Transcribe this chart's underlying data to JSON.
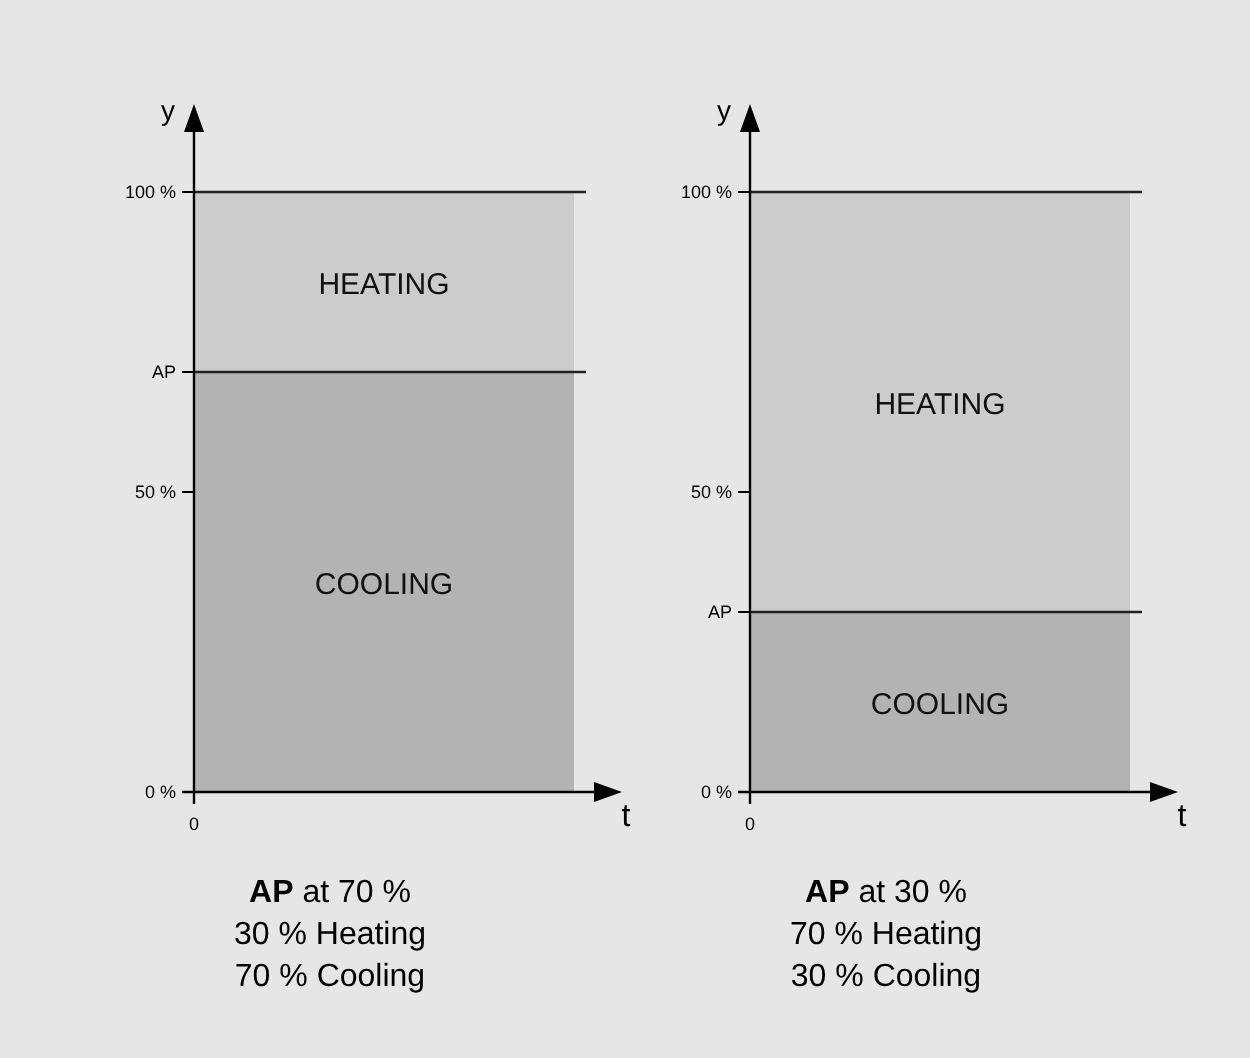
{
  "chart_data": [
    {
      "type": "bar",
      "stacked": true,
      "categories": [
        null
      ],
      "xlabel": "t",
      "ylabel": "y",
      "ylim": [
        0,
        110
      ],
      "yticks": [
        {
          "value": 0,
          "label": "0 %"
        },
        {
          "value": 50,
          "label": "50 %"
        },
        {
          "value": 70,
          "label": "AP"
        },
        {
          "value": 100,
          "label": "100 %"
        }
      ],
      "series": [
        {
          "name": "COOLING",
          "color": "#b3b3b3",
          "values": [
            70
          ]
        },
        {
          "name": "HEATING",
          "color": "#cccccc",
          "values": [
            30
          ]
        }
      ],
      "ref_lines": [
        {
          "axis": "y",
          "value": 70
        },
        {
          "axis": "y",
          "value": 100
        }
      ],
      "annotations": [
        "0",
        "AP at 70 %",
        "30 % Heating",
        "70 % Cooling"
      ]
    },
    {
      "type": "bar",
      "stacked": true,
      "categories": [
        null
      ],
      "xlabel": "t",
      "ylabel": "y",
      "ylim": [
        0,
        110
      ],
      "yticks": [
        {
          "value": 0,
          "label": "0 %"
        },
        {
          "value": 30,
          "label": "AP"
        },
        {
          "value": 50,
          "label": "50 %"
        },
        {
          "value": 100,
          "label": "100 %"
        }
      ],
      "series": [
        {
          "name": "COOLING",
          "color": "#b3b3b3",
          "values": [
            30
          ]
        },
        {
          "name": "HEATING",
          "color": "#cccccc",
          "values": [
            70
          ]
        }
      ],
      "ref_lines": [
        {
          "axis": "y",
          "value": 30
        },
        {
          "axis": "y",
          "value": 100
        }
      ],
      "annotations": [
        "0",
        "AP at 30 %",
        "70 % Heating",
        "30 % Cooling"
      ]
    }
  ]
}
